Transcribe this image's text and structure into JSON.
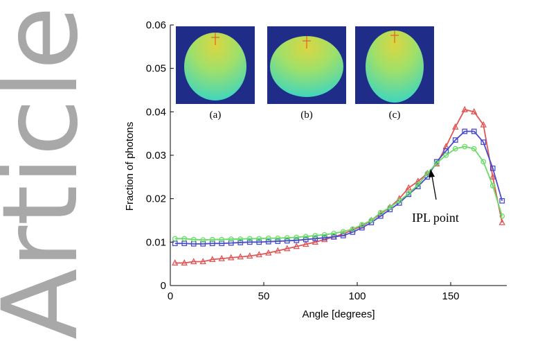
{
  "watermark": {
    "text": "Article",
    "color": "#a8a8a8"
  },
  "chart_data": {
    "type": "line",
    "title": "",
    "xlabel": "Angle [degrees]",
    "ylabel": "Fraction of photons",
    "xlim": [
      0,
      180
    ],
    "ylim": [
      0,
      0.06
    ],
    "x_ticks": [
      0,
      50,
      100,
      150
    ],
    "y_ticks": [
      0,
      0.01,
      0.02,
      0.03,
      0.04,
      0.05,
      0.06
    ],
    "x_tick_labels": [
      "0",
      "50",
      "100",
      "150"
    ],
    "y_tick_labels": [
      "0",
      "0.01",
      "0.02",
      "0.03",
      "0.04",
      "0.05",
      "0.06"
    ],
    "grid": false,
    "series": [
      {
        "color": "#e05555",
        "marker": "triangle",
        "x": [
          2.5,
          7.5,
          12.5,
          17.5,
          22.5,
          27.5,
          32.5,
          37.5,
          42.5,
          47.5,
          52.5,
          57.5,
          62.5,
          67.5,
          72.5,
          77.5,
          82.5,
          87.5,
          92.5,
          97.5,
          102.5,
          107.5,
          112.5,
          117.5,
          122.5,
          127.5,
          132.5,
          137.5,
          142.5,
          147.5,
          152.5,
          157.5,
          162.5,
          167.5,
          172.5,
          177.5
        ],
        "values": [
          0.0052,
          0.0052,
          0.0055,
          0.0055,
          0.006,
          0.0062,
          0.0064,
          0.0066,
          0.0068,
          0.0071,
          0.0075,
          0.008,
          0.0085,
          0.009,
          0.0095,
          0.01,
          0.0106,
          0.0112,
          0.0119,
          0.0128,
          0.0137,
          0.015,
          0.0165,
          0.018,
          0.02,
          0.0225,
          0.024,
          0.0258,
          0.028,
          0.032,
          0.0365,
          0.0405,
          0.04,
          0.037,
          0.025,
          0.0145
        ]
      },
      {
        "color": "#4a4acc",
        "marker": "square",
        "x": [
          2.5,
          7.5,
          12.5,
          17.5,
          22.5,
          27.5,
          32.5,
          37.5,
          42.5,
          47.5,
          52.5,
          57.5,
          62.5,
          67.5,
          72.5,
          77.5,
          82.5,
          87.5,
          92.5,
          97.5,
          102.5,
          107.5,
          112.5,
          117.5,
          122.5,
          127.5,
          132.5,
          137.5,
          142.5,
          147.5,
          152.5,
          157.5,
          162.5,
          167.5,
          172.5,
          177.5
        ],
        "values": [
          0.0097,
          0.0097,
          0.0096,
          0.0096,
          0.0097,
          0.0097,
          0.0098,
          0.0099,
          0.01,
          0.01,
          0.0101,
          0.0102,
          0.0103,
          0.0104,
          0.0106,
          0.0108,
          0.011,
          0.0112,
          0.0115,
          0.0123,
          0.0133,
          0.0145,
          0.016,
          0.0175,
          0.019,
          0.021,
          0.0228,
          0.025,
          0.0285,
          0.031,
          0.0335,
          0.0355,
          0.0355,
          0.033,
          0.027,
          0.0195
        ]
      },
      {
        "color": "#66dd66",
        "marker": "circle",
        "x": [
          2.5,
          7.5,
          12.5,
          17.5,
          22.5,
          27.5,
          32.5,
          37.5,
          42.5,
          47.5,
          52.5,
          57.5,
          62.5,
          67.5,
          72.5,
          77.5,
          82.5,
          87.5,
          92.5,
          97.5,
          102.5,
          107.5,
          112.5,
          117.5,
          122.5,
          127.5,
          132.5,
          137.5,
          142.5,
          147.5,
          152.5,
          157.5,
          162.5,
          167.5,
          172.5,
          177.5
        ],
        "values": [
          0.0108,
          0.0108,
          0.0106,
          0.0105,
          0.0106,
          0.0106,
          0.0107,
          0.0107,
          0.0108,
          0.0108,
          0.0109,
          0.0109,
          0.011,
          0.0111,
          0.0113,
          0.0115,
          0.0117,
          0.012,
          0.0124,
          0.013,
          0.014,
          0.015,
          0.0168,
          0.018,
          0.0195,
          0.0212,
          0.0232,
          0.0258,
          0.0282,
          0.03,
          0.0315,
          0.032,
          0.0315,
          0.0285,
          0.023,
          0.016
        ]
      }
    ],
    "annotations": [
      {
        "text": "IPL point",
        "x": 140,
        "y": 0.0275
      }
    ],
    "insets": [
      {
        "label": "(a)",
        "shape": "circle"
      },
      {
        "label": "(b)",
        "shape": "oblate"
      },
      {
        "label": "(c)",
        "shape": "prolate"
      }
    ],
    "inset_colors": {
      "background": "#1f2d88",
      "body_center": "#dcd640",
      "body_edge": "#3ad5c2",
      "source": "#e0602a"
    }
  }
}
